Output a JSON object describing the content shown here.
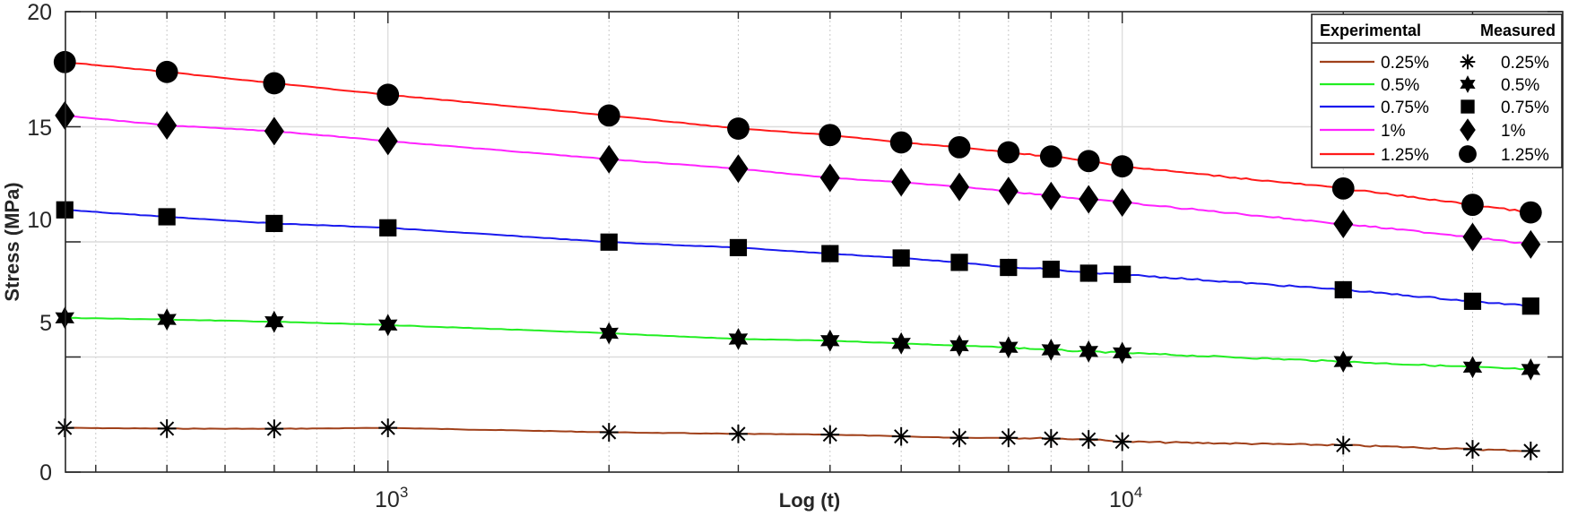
{
  "chart_data": {
    "type": "line",
    "title": "",
    "xlabel": "Log (t)",
    "ylabel": "Stress (MPa)",
    "xscale": "log",
    "xlim": [
      363,
      45000
    ],
    "ylim": [
      0,
      20
    ],
    "yticks": [
      0,
      5,
      10,
      15,
      20
    ],
    "xticks_major": [
      1000,
      10000
    ],
    "xtick_labels": [
      {
        "base": "10",
        "exp": "3"
      },
      {
        "base": "10",
        "exp": "4"
      }
    ],
    "grid": true,
    "legend_position": "upper right",
    "legend_headers": {
      "left": "Experimental",
      "right": "Measured"
    },
    "x": [
      363,
      500,
      700,
      1000,
      2000,
      3000,
      4000,
      5000,
      6000,
      7000,
      8000,
      9000,
      10000,
      20000,
      30000,
      36000
    ],
    "series": [
      {
        "name": "0.25%",
        "color": "#a0401a",
        "marker": "asterisk",
        "values": [
          1.92,
          1.89,
          1.88,
          1.92,
          1.73,
          1.66,
          1.63,
          1.55,
          1.49,
          1.49,
          1.46,
          1.42,
          1.32,
          1.17,
          0.99,
          0.92
        ]
      },
      {
        "name": "0.5%",
        "color": "#22ee22",
        "marker": "hexagram",
        "values": [
          6.7,
          6.63,
          6.53,
          6.39,
          6.03,
          5.78,
          5.71,
          5.59,
          5.49,
          5.42,
          5.31,
          5.24,
          5.18,
          4.8,
          4.56,
          4.46
        ]
      },
      {
        "name": "0.75%",
        "color": "#1a1aee",
        "marker": "square",
        "values": [
          11.39,
          11.09,
          10.8,
          10.61,
          9.99,
          9.75,
          9.49,
          9.3,
          9.11,
          8.89,
          8.81,
          8.64,
          8.59,
          7.92,
          7.42,
          7.21
        ]
      },
      {
        "name": "1%",
        "color": "#ff22ff",
        "marker": "diamond",
        "values": [
          15.49,
          15.06,
          14.81,
          14.38,
          13.59,
          13.18,
          12.78,
          12.59,
          12.39,
          12.21,
          11.99,
          11.85,
          11.71,
          10.78,
          10.21,
          9.89
        ]
      },
      {
        "name": "1.25%",
        "color": "#ff1a1a",
        "marker": "circle",
        "values": [
          17.81,
          17.38,
          16.89,
          16.39,
          15.49,
          14.92,
          14.64,
          14.32,
          14.11,
          13.89,
          13.71,
          13.51,
          13.28,
          12.32,
          11.61,
          11.28
        ]
      }
    ]
  },
  "legend": {
    "header_left": "Experimental",
    "header_right": "Measured",
    "rows": [
      {
        "exp_label": "0.25%",
        "meas_label": "0.25%"
      },
      {
        "exp_label": "0.5%",
        "meas_label": "0.5%"
      },
      {
        "exp_label": "0.75%",
        "meas_label": "0.75%"
      },
      {
        "exp_label": "1%",
        "meas_label": "1%"
      },
      {
        "exp_label": "1.25%",
        "meas_label": "1.25%"
      }
    ]
  },
  "axes": {
    "xlabel": "Log (t)",
    "ylabel": "Stress (MPa)",
    "ytick_labels": [
      "0",
      "5",
      "10",
      "15",
      "20"
    ],
    "xtick_1_base": "10",
    "xtick_1_exp": "3",
    "xtick_2_base": "10",
    "xtick_2_exp": "4"
  }
}
